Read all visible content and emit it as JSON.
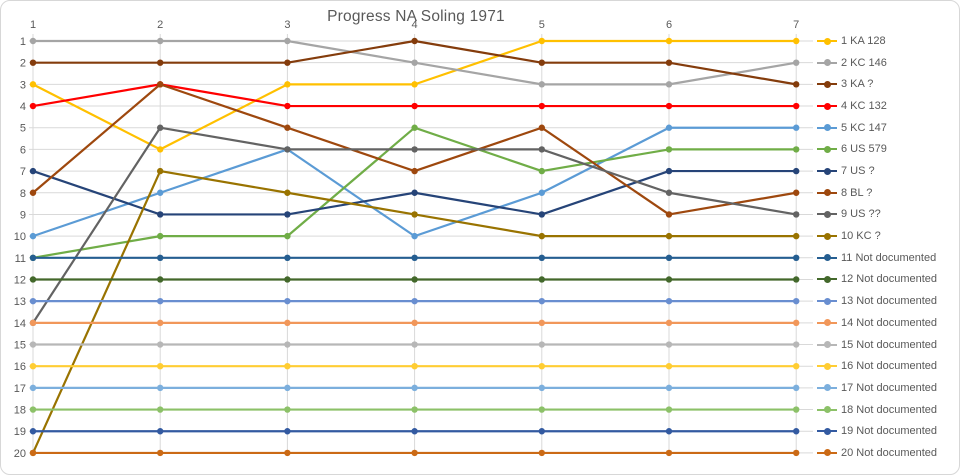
{
  "chart_data": {
    "type": "line",
    "title": "Progress NA Soling 1971",
    "xlabel": "",
    "ylabel": "",
    "x": [
      1,
      2,
      3,
      4,
      5,
      6,
      7
    ],
    "x_tick_labels": [
      "1",
      "2",
      "3",
      "4",
      "5",
      "6",
      "7"
    ],
    "y_tick_labels": [
      "1",
      "2",
      "3",
      "4",
      "5",
      "6",
      "7",
      "8",
      "9",
      "10",
      "11",
      "12",
      "13",
      "14",
      "15",
      "16",
      "17",
      "18",
      "19",
      "20"
    ],
    "y_range": [
      1,
      20
    ],
    "y_axis_reversed": true,
    "x_axis_position": "top",
    "grid": true,
    "legend_position": "right",
    "gridline_color": "#d9d9d9",
    "axis_text_color": "#595959",
    "title_color": "#595959",
    "series": [
      {
        "name": "1 KA 128",
        "color": "#FFC000",
        "values": [
          3,
          6,
          3,
          3,
          1,
          1,
          1
        ]
      },
      {
        "name": "2 KC 146",
        "color": "#A5A5A5",
        "values": [
          1,
          1,
          1,
          2,
          3,
          3,
          2
        ]
      },
      {
        "name": "3 KA ?",
        "color": "#843C0C",
        "values": [
          2,
          2,
          2,
          1,
          2,
          2,
          3
        ]
      },
      {
        "name": "4 KC 132",
        "color": "#FF0000",
        "values": [
          4,
          3,
          4,
          4,
          4,
          4,
          4
        ]
      },
      {
        "name": "5 KC 147",
        "color": "#5B9BD5",
        "values": [
          10,
          8,
          6,
          10,
          8,
          5,
          5
        ]
      },
      {
        "name": "6 US 579",
        "color": "#70AD47",
        "values": [
          11,
          10,
          10,
          5,
          7,
          6,
          6
        ]
      },
      {
        "name": "7 US ?",
        "color": "#264478",
        "values": [
          7,
          9,
          9,
          8,
          9,
          7,
          7
        ]
      },
      {
        "name": "8 BL ?",
        "color": "#9E480E",
        "values": [
          8,
          3,
          5,
          7,
          5,
          9,
          8
        ]
      },
      {
        "name": "9 US ??",
        "color": "#636363",
        "values": [
          14,
          5,
          6,
          6,
          6,
          8,
          9
        ]
      },
      {
        "name": "10 KC ?",
        "color": "#997300",
        "values": [
          20,
          7,
          8,
          9,
          10,
          10,
          10
        ]
      },
      {
        "name": "11 Not documented",
        "color": "#255E91",
        "values": [
          11,
          11,
          11,
          11,
          11,
          11,
          11
        ]
      },
      {
        "name": "12 Not documented",
        "color": "#43682B",
        "values": [
          12,
          12,
          12,
          12,
          12,
          12,
          12
        ]
      },
      {
        "name": "13 Not documented",
        "color": "#698ED0",
        "values": [
          13,
          13,
          13,
          13,
          13,
          13,
          13
        ]
      },
      {
        "name": "14 Not documented",
        "color": "#F1975A",
        "values": [
          14,
          14,
          14,
          14,
          14,
          14,
          14
        ]
      },
      {
        "name": "15 Not documented",
        "color": "#B7B7B7",
        "values": [
          15,
          15,
          15,
          15,
          15,
          15,
          15
        ]
      },
      {
        "name": "16 Not documented",
        "color": "#FFCD33",
        "values": [
          16,
          16,
          16,
          16,
          16,
          16,
          16
        ]
      },
      {
        "name": "17 Not documented",
        "color": "#7CAFDD",
        "values": [
          17,
          17,
          17,
          17,
          17,
          17,
          17
        ]
      },
      {
        "name": "18 Not documented",
        "color": "#8CC168",
        "values": [
          18,
          18,
          18,
          18,
          18,
          18,
          18
        ]
      },
      {
        "name": "19 Not documented",
        "color": "#335AA1",
        "values": [
          19,
          19,
          19,
          19,
          19,
          19,
          19
        ]
      },
      {
        "name": "20 Not documented",
        "color": "#CB6A15",
        "values": [
          20,
          20,
          20,
          20,
          20,
          20,
          20
        ]
      }
    ]
  }
}
